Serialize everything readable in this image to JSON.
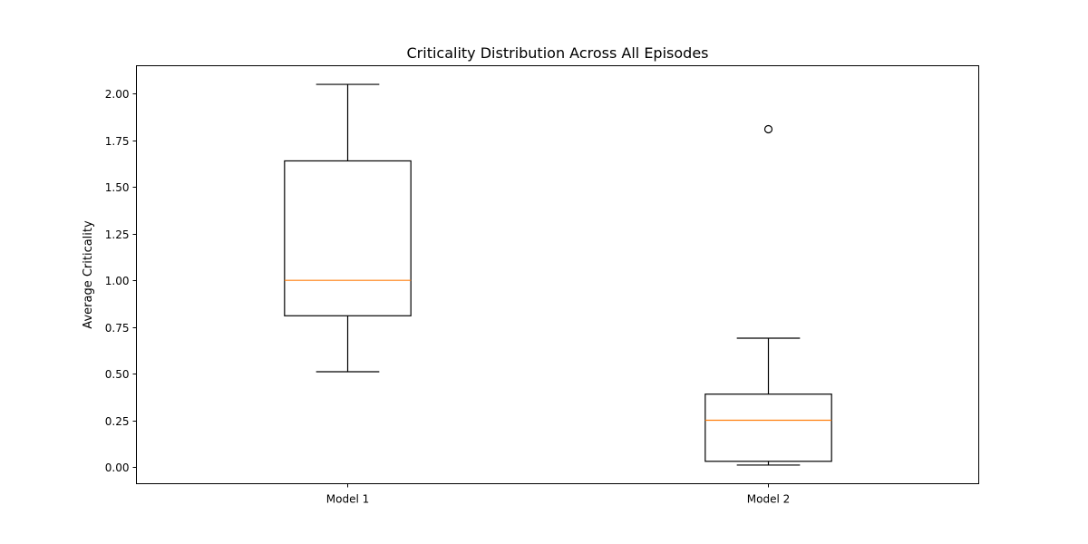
{
  "chart_data": {
    "type": "box",
    "title": "Criticality Distribution Across All Episodes",
    "xlabel": "",
    "ylabel": "Average Criticality",
    "ylim": [
      -0.09,
      2.15
    ],
    "yticks": [
      0.0,
      0.25,
      0.5,
      0.75,
      1.0,
      1.25,
      1.5,
      1.75,
      2.0
    ],
    "ytick_labels": [
      "0.00",
      "0.25",
      "0.50",
      "0.75",
      "1.00",
      "1.25",
      "1.50",
      "1.75",
      "2.00"
    ],
    "grid": false,
    "categories": [
      "Model 1",
      "Model 2"
    ],
    "boxes": [
      {
        "label": "Model 1",
        "whisker_low": 0.51,
        "q1": 0.81,
        "median": 1.0,
        "q3": 1.64,
        "whisker_high": 2.05,
        "outliers": []
      },
      {
        "label": "Model 2",
        "whisker_low": 0.01,
        "q1": 0.03,
        "median": 0.25,
        "q3": 0.39,
        "whisker_high": 0.69,
        "outliers": [
          1.81
        ]
      }
    ],
    "colors": {
      "box": "#000000",
      "median": "#ff7f0e"
    }
  }
}
